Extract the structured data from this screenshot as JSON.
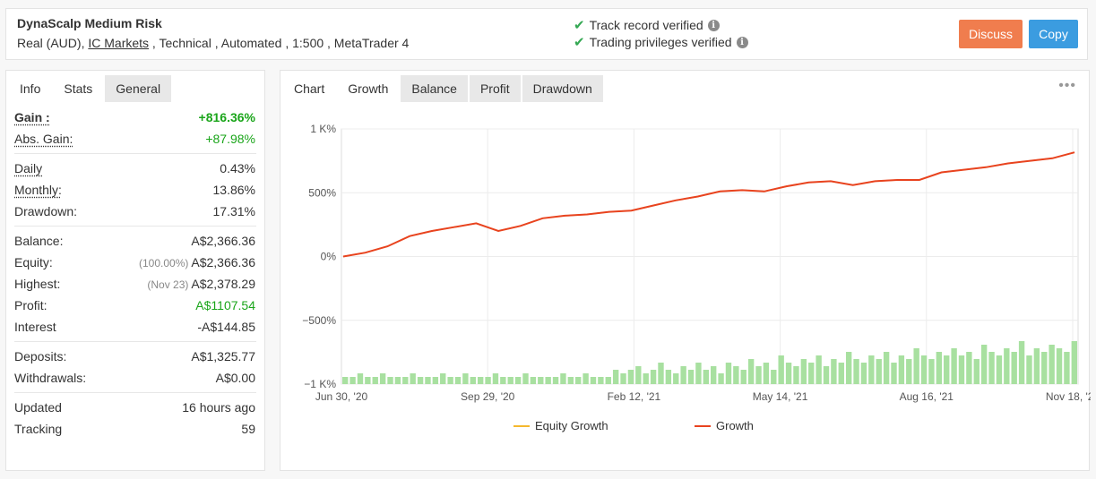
{
  "header": {
    "system_name": "DynaScalp Medium Risk",
    "meta_prefix": "Real (AUD), ",
    "broker": "IC Markets",
    "meta_suffix": " , Technical , Automated , 1:500 , MetaTrader 4",
    "verified_track": "Track record verified",
    "verified_trading": "Trading privileges verified",
    "discuss_label": "Discuss",
    "copy_label": "Copy",
    "colors": {
      "discuss": "#f07d4e",
      "copy": "#3b9ce0",
      "check": "#34a853"
    }
  },
  "left_panel": {
    "tabs": [
      "Info",
      "Stats",
      "General"
    ],
    "active_tab": "Stats",
    "stats": {
      "gain_label": "Gain :",
      "gain_value": "+816.36%",
      "abs_gain_label": "Abs. Gain:",
      "abs_gain_value": "+87.98%",
      "daily_label": "Daily",
      "daily_value": "0.43%",
      "monthly_label": "Monthly:",
      "monthly_value": "13.86%",
      "drawdown_label": "Drawdown:",
      "drawdown_value": "17.31%",
      "balance_label": "Balance:",
      "balance_value": "A$2,366.36",
      "equity_label": "Equity:",
      "equity_pct": "(100.00%)",
      "equity_value": "A$2,366.36",
      "highest_label": "Highest:",
      "highest_date": "(Nov 23)",
      "highest_value": "A$2,378.29",
      "profit_label": "Profit:",
      "profit_value": "A$1107.54",
      "interest_label": "Interest",
      "interest_value": "-A$144.85",
      "deposits_label": "Deposits:",
      "deposits_value": "A$1,325.77",
      "withdrawals_label": "Withdrawals:",
      "withdrawals_value": "A$0.00",
      "updated_label": "Updated",
      "updated_value": "16 hours ago",
      "tracking_label": "Tracking",
      "tracking_value": "59"
    }
  },
  "right_panel": {
    "tabs": [
      "Chart",
      "Growth",
      "Balance",
      "Profit",
      "Drawdown"
    ],
    "active_tab": "Growth",
    "menu_icon": "ellipsis-icon"
  },
  "chart_data": {
    "type": "line",
    "x_tick_labels": [
      "Jun 30, '20",
      "Sep 29, '20",
      "Feb 12, '21",
      "May 14, '21",
      "Aug 16, '21",
      "Nov 18, '21"
    ],
    "y_tick_labels": [
      "1 K%",
      "500%",
      "0%",
      "−500%",
      "−1 K%"
    ],
    "ylim": [
      -1000,
      1000
    ],
    "grid": true,
    "legend_position": "bottom-center",
    "series": [
      {
        "name": "Equity Growth",
        "color": "#f5b82e",
        "values": [
          0,
          30,
          80,
          160,
          200,
          230,
          260,
          200,
          240,
          300,
          320,
          330,
          350,
          360,
          400,
          440,
          470,
          510,
          520,
          510,
          550,
          580,
          590,
          560,
          590,
          600,
          600,
          660,
          680,
          700,
          730,
          750,
          770,
          816
        ]
      },
      {
        "name": "Growth",
        "color": "#e8431f",
        "values": [
          0,
          30,
          80,
          160,
          200,
          230,
          260,
          200,
          240,
          300,
          320,
          330,
          350,
          360,
          400,
          440,
          470,
          510,
          520,
          510,
          550,
          580,
          590,
          560,
          590,
          600,
          600,
          660,
          680,
          700,
          730,
          750,
          770,
          816
        ]
      }
    ],
    "volume_bars_color": "#a8e0a0",
    "volume_bars": [
      2,
      2,
      3,
      2,
      2,
      3,
      2,
      2,
      2,
      3,
      2,
      2,
      2,
      3,
      2,
      2,
      3,
      2,
      2,
      2,
      3,
      2,
      2,
      2,
      3,
      2,
      2,
      2,
      2,
      3,
      2,
      2,
      3,
      2,
      2,
      2,
      4,
      3,
      4,
      5,
      3,
      4,
      6,
      4,
      3,
      5,
      4,
      6,
      4,
      5,
      3,
      6,
      5,
      4,
      7,
      5,
      6,
      4,
      8,
      6,
      5,
      7,
      6,
      8,
      5,
      7,
      6,
      9,
      7,
      6,
      8,
      7,
      9,
      6,
      8,
      7,
      10,
      8,
      7,
      9,
      8,
      10,
      8,
      9,
      7,
      11,
      9,
      8,
      10,
      9,
      12,
      8,
      10,
      9,
      11,
      10,
      9,
      12
    ]
  }
}
